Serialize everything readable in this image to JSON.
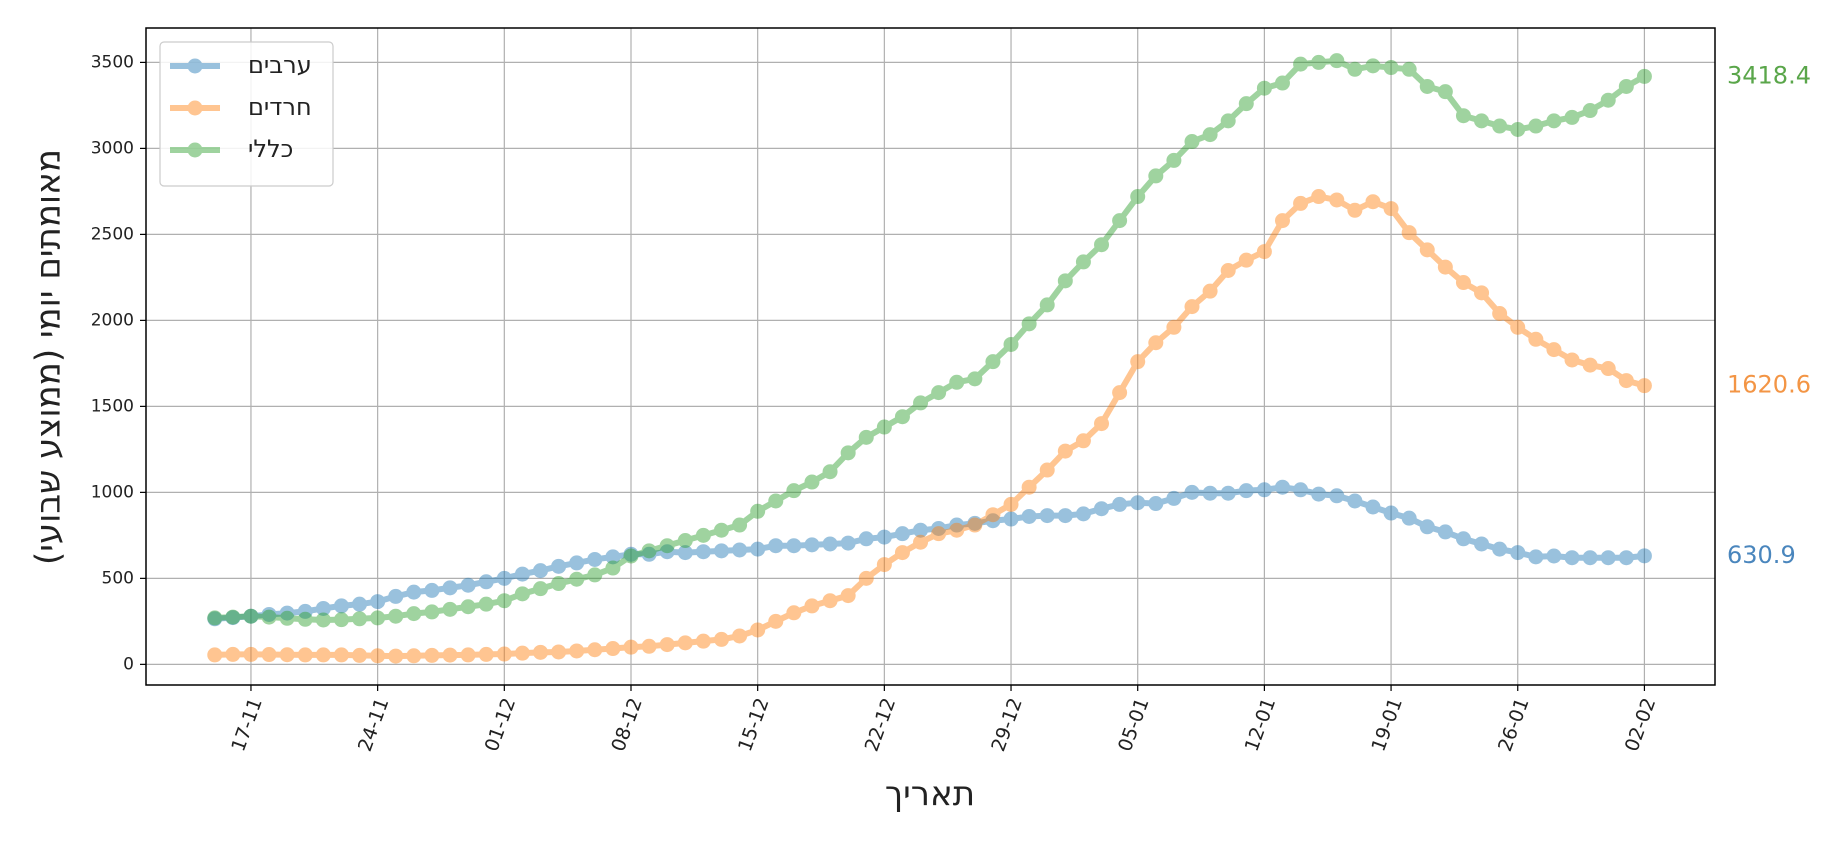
{
  "chart_data": {
    "type": "line",
    "ylabel": "מאומתים יומי (ממוצע שבועי)",
    "xlabel": "תאריך",
    "categories": [
      null,
      null,
      "17-11",
      null,
      null,
      null,
      null,
      null,
      null,
      "24-11",
      null,
      null,
      null,
      null,
      null,
      null,
      "01-12",
      null,
      null,
      null,
      null,
      null,
      null,
      "08-12",
      null,
      null,
      null,
      null,
      null,
      null,
      "15-12",
      null,
      null,
      null,
      null,
      null,
      null,
      "22-12",
      null,
      null,
      null,
      null,
      null,
      null,
      "29-12",
      null,
      null,
      null,
      null,
      null,
      null,
      "05-01",
      null,
      null,
      null,
      null,
      null,
      null,
      "12-01",
      null,
      null,
      null,
      null,
      null,
      null,
      "19-01",
      null,
      null,
      null,
      null,
      null,
      null,
      "26-01",
      null,
      null,
      null,
      null,
      null,
      null,
      "02-02"
    ],
    "series": [
      {
        "name": "ערבים",
        "color": "#1f77b4",
        "label_color": "#4a86bd",
        "values": [
          265,
          272,
          280,
          290,
          298,
          308,
          325,
          340,
          350,
          365,
          395,
          420,
          430,
          445,
          460,
          480,
          500,
          525,
          545,
          570,
          590,
          610,
          625,
          640,
          640,
          655,
          650,
          655,
          660,
          665,
          670,
          690,
          690,
          695,
          700,
          705,
          730,
          740,
          760,
          780,
          790,
          810,
          820,
          835,
          845,
          860,
          865,
          865,
          875,
          905,
          930,
          940,
          935,
          965,
          1000,
          995,
          995,
          1010,
          1015,
          1030,
          1015,
          990,
          980,
          950,
          915,
          880,
          850,
          800,
          770,
          730,
          700,
          670,
          650,
          625,
          630,
          620,
          620,
          620,
          620,
          630.9
        ]
      },
      {
        "name": "חרדים",
        "color": "#ff7f0e",
        "label_color": "#f39545",
        "values": [
          55,
          58,
          58,
          57,
          56,
          55,
          55,
          55,
          52,
          50,
          48,
          50,
          52,
          54,
          55,
          58,
          60,
          65,
          70,
          72,
          78,
          85,
          92,
          100,
          105,
          115,
          125,
          135,
          145,
          165,
          200,
          250,
          300,
          340,
          370,
          400,
          500,
          580,
          650,
          710,
          760,
          780,
          810,
          870,
          930,
          1030,
          1130,
          1240,
          1300,
          1400,
          1580,
          1760,
          1870,
          1960,
          2080,
          2170,
          2290,
          2350,
          2400,
          2580,
          2680,
          2720,
          2700,
          2640,
          2690,
          2650,
          2510,
          2410,
          2310,
          2220,
          2160,
          2040,
          1960,
          1890,
          1830,
          1770,
          1740,
          1720,
          1650,
          1620.6
        ]
      },
      {
        "name": "כללי",
        "color": "#2ca02c",
        "label_color": "#5aa64a",
        "values": [
          270,
          275,
          280,
          275,
          268,
          262,
          258,
          260,
          265,
          270,
          280,
          295,
          305,
          320,
          335,
          350,
          370,
          410,
          440,
          470,
          495,
          520,
          560,
          630,
          660,
          690,
          720,
          750,
          780,
          810,
          890,
          950,
          1010,
          1060,
          1120,
          1230,
          1320,
          1380,
          1440,
          1520,
          1580,
          1640,
          1660,
          1760,
          1860,
          1980,
          2090,
          2230,
          2340,
          2440,
          2580,
          2720,
          2840,
          2930,
          3040,
          3080,
          3160,
          3260,
          3350,
          3380,
          3490,
          3500,
          3510,
          3460,
          3480,
          3470,
          3460,
          3360,
          3330,
          3190,
          3160,
          3130,
          3110,
          3130,
          3160,
          3180,
          3220,
          3280,
          3360,
          3418.4
        ]
      }
    ],
    "ylim": [
      -120,
      3700
    ],
    "yticks": [
      0,
      500,
      1000,
      1500,
      2000,
      2500,
      3000,
      3500
    ],
    "grid": true,
    "legend": "upper-left"
  }
}
